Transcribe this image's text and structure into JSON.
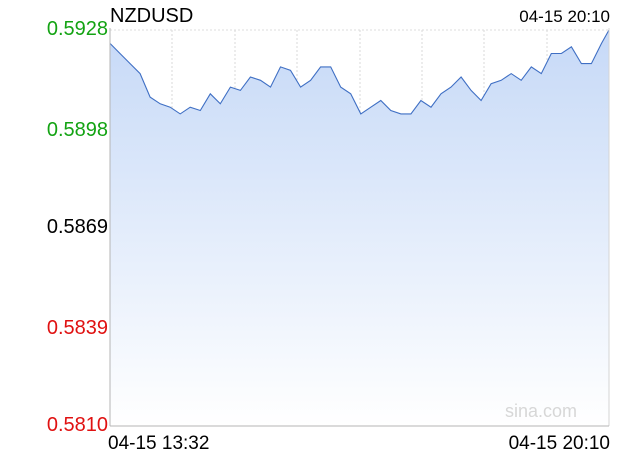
{
  "header": {
    "symbol": "NZDUSD",
    "timestamp": "04-15 20:10"
  },
  "watermark": "sina.com",
  "colors": {
    "up": "#13a313",
    "down": "#e01111",
    "neutral": "#000000",
    "line": "#3f6fc4",
    "fill_top": "#c6d9f7",
    "fill_bottom": "#ffffff"
  },
  "chart_data": {
    "type": "area",
    "title": "NZDUSD",
    "xlabel": "",
    "ylabel": "",
    "ylim": [
      0.581,
      0.5928
    ],
    "reference": 0.5869,
    "y_ticks": [
      {
        "value": 0.5928,
        "label": "0.5928",
        "color": "up"
      },
      {
        "value": 0.5898,
        "label": "0.5898",
        "color": "up"
      },
      {
        "value": 0.5869,
        "label": "0.5869",
        "color": "neutral"
      },
      {
        "value": 0.5839,
        "label": "0.5839",
        "color": "down"
      },
      {
        "value": 0.581,
        "label": "0.5810",
        "color": "down"
      }
    ],
    "x_ticks": [
      {
        "value": 0,
        "label": "04-15 13:32"
      },
      {
        "value": 398,
        "label": "04-15 20:10"
      }
    ],
    "x": [
      0,
      8,
      16,
      24,
      32,
      40,
      48,
      56,
      64,
      72,
      80,
      88,
      96,
      104,
      112,
      120,
      128,
      136,
      144,
      152,
      160,
      168,
      176,
      184,
      192,
      200,
      208,
      216,
      224,
      232,
      240,
      248,
      256,
      264,
      272,
      280,
      288,
      296,
      304,
      312,
      320,
      328,
      336,
      344,
      352,
      360,
      368,
      376,
      384,
      392,
      398
    ],
    "values": [
      0.5924,
      0.5921,
      0.5918,
      0.5915,
      0.5908,
      0.5906,
      0.5905,
      0.5903,
      0.5905,
      0.5904,
      0.5909,
      0.5906,
      0.5911,
      0.591,
      0.5914,
      0.5913,
      0.5911,
      0.5917,
      0.5916,
      0.5911,
      0.5913,
      0.5917,
      0.5917,
      0.5911,
      0.5909,
      0.5903,
      0.5905,
      0.5907,
      0.5904,
      0.5903,
      0.5903,
      0.5907,
      0.5905,
      0.5909,
      0.5911,
      0.5914,
      0.591,
      0.5907,
      0.5912,
      0.5913,
      0.5915,
      0.5913,
      0.5917,
      0.5915,
      0.5921,
      0.5921,
      0.5923,
      0.5918,
      0.5918,
      0.5924,
      0.5928
    ]
  }
}
